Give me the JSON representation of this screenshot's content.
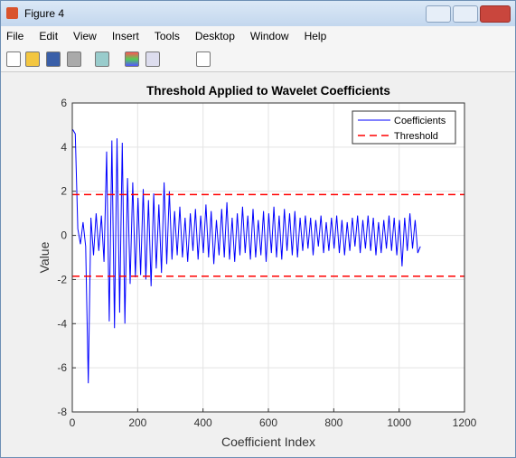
{
  "window": {
    "title": "Figure 4"
  },
  "menu": [
    "File",
    "Edit",
    "View",
    "Insert",
    "Tools",
    "Desktop",
    "Window",
    "Help"
  ],
  "chart_data": {
    "type": "line",
    "title": "Threshold Applied to Wavelet Coefficients",
    "xlabel": "Coefficient Index",
    "ylabel": "Value",
    "xlim": [
      0,
      1200
    ],
    "ylim": [
      -8,
      6
    ],
    "xticks": [
      0,
      200,
      400,
      600,
      800,
      1000,
      1200
    ],
    "yticks": [
      -8,
      -6,
      -4,
      -2,
      0,
      2,
      4,
      6
    ],
    "grid": true,
    "legend": "upper right",
    "series": [
      {
        "name": "Coefficients",
        "color": "#0000ff",
        "x": [
          1,
          9,
          17,
          25,
          33,
          41,
          49,
          57,
          65,
          73,
          81,
          89,
          97,
          105,
          113,
          121,
          129,
          137,
          145,
          153,
          161,
          169,
          177,
          185,
          193,
          201,
          209,
          217,
          225,
          233,
          241,
          249,
          257,
          265,
          273,
          281,
          289,
          297,
          305,
          313,
          321,
          329,
          337,
          345,
          353,
          361,
          369,
          377,
          385,
          393,
          401,
          409,
          417,
          425,
          433,
          441,
          449,
          457,
          465,
          473,
          481,
          489,
          497,
          505,
          513,
          521,
          529,
          537,
          545,
          553,
          561,
          569,
          577,
          585,
          593,
          601,
          609,
          617,
          625,
          633,
          641,
          649,
          657,
          665,
          673,
          681,
          689,
          697,
          705,
          713,
          721,
          729,
          737,
          745,
          753,
          761,
          769,
          777,
          785,
          793,
          801,
          809,
          817,
          825,
          833,
          841,
          849,
          857,
          865,
          873,
          881,
          889,
          897,
          905,
          913,
          921,
          929,
          937,
          945,
          953,
          961,
          969,
          977,
          985,
          993,
          1001,
          1009,
          1017,
          1025,
          1033,
          1041,
          1049,
          1057,
          1065
        ],
        "values": [
          4.8,
          4.6,
          0.3,
          -0.4,
          0.6,
          -0.5,
          -6.7,
          0.8,
          -0.9,
          1.0,
          -0.7,
          0.9,
          -1.2,
          3.8,
          -3.9,
          4.3,
          -4.2,
          4.4,
          -3.5,
          4.2,
          -4.0,
          2.6,
          -2.2,
          2.4,
          -1.9,
          1.7,
          -1.8,
          2.1,
          -2.0,
          1.6,
          -2.3,
          1.9,
          -1.5,
          1.4,
          -1.7,
          2.4,
          -1.3,
          2.0,
          -1.1,
          1.1,
          -0.9,
          1.3,
          -1.0,
          0.8,
          -1.2,
          1.0,
          -0.7,
          1.2,
          -1.1,
          0.9,
          -0.8,
          1.4,
          -1.0,
          1.1,
          -1.3,
          0.7,
          -0.9,
          1.2,
          -1.0,
          1.5,
          -1.1,
          0.8,
          -1.2,
          1.0,
          -0.9,
          1.3,
          -0.8,
          0.9,
          -1.1,
          1.2,
          -1.0,
          0.7,
          -0.9,
          1.1,
          -1.2,
          1.0,
          -0.8,
          1.3,
          -1.0,
          0.9,
          -1.1,
          1.2,
          -0.7,
          1.0,
          -0.9,
          1.1,
          -1.0,
          0.8,
          -0.7,
          0.9,
          -0.6,
          0.8,
          -0.9,
          0.7,
          -0.5,
          0.9,
          -0.8,
          0.6,
          -0.7,
          0.8,
          -0.6,
          0.9,
          -0.8,
          0.7,
          -0.9,
          0.6,
          -0.7,
          0.8,
          -0.5,
          0.9,
          -0.8,
          0.7,
          -0.6,
          0.9,
          -0.7,
          0.8,
          -0.9,
          0.6,
          -0.8,
          0.7,
          -0.6,
          0.9,
          -0.7,
          0.8,
          -0.9,
          0.7,
          -1.4,
          0.8,
          -0.7,
          1.0,
          -0.6,
          0.7,
          -0.8,
          -0.5
        ]
      },
      {
        "name": "Threshold",
        "color": "#ff0000",
        "style": "dashed",
        "values": [
          1.85,
          -1.85
        ]
      }
    ]
  }
}
